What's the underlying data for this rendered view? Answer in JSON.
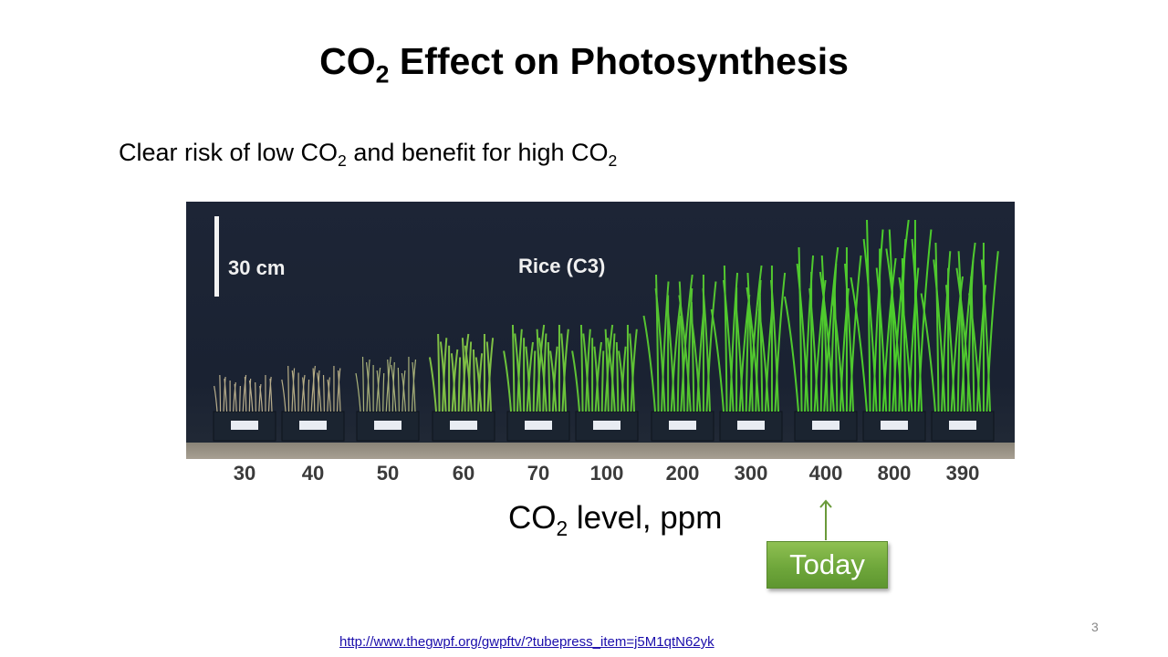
{
  "slide": {
    "title_main": "CO",
    "title_sub": "2",
    "title_rest": " Effect on Photosynthesis",
    "subtitle_part1": "Clear risk of low CO",
    "subtitle_sub1": "2",
    "subtitle_part2": " and benefit for high CO",
    "subtitle_sub2": "2",
    "page_number": "3",
    "link": "http://www.thegwpf.org/gwpftv/?tubepress_item=j5M1qtN62yk"
  },
  "photo": {
    "scale_label": "30 cm",
    "species_label": "Rice (C3)",
    "ticks": [
      "30",
      "40",
      "50",
      "60",
      "70",
      "100",
      "200",
      "300",
      "400",
      "800",
      "390"
    ]
  },
  "axis": {
    "label_main": "CO",
    "label_sub": "2",
    "label_rest": " level,  ppm"
  },
  "callout": {
    "text": "Today",
    "color": "#6fa73b"
  }
}
